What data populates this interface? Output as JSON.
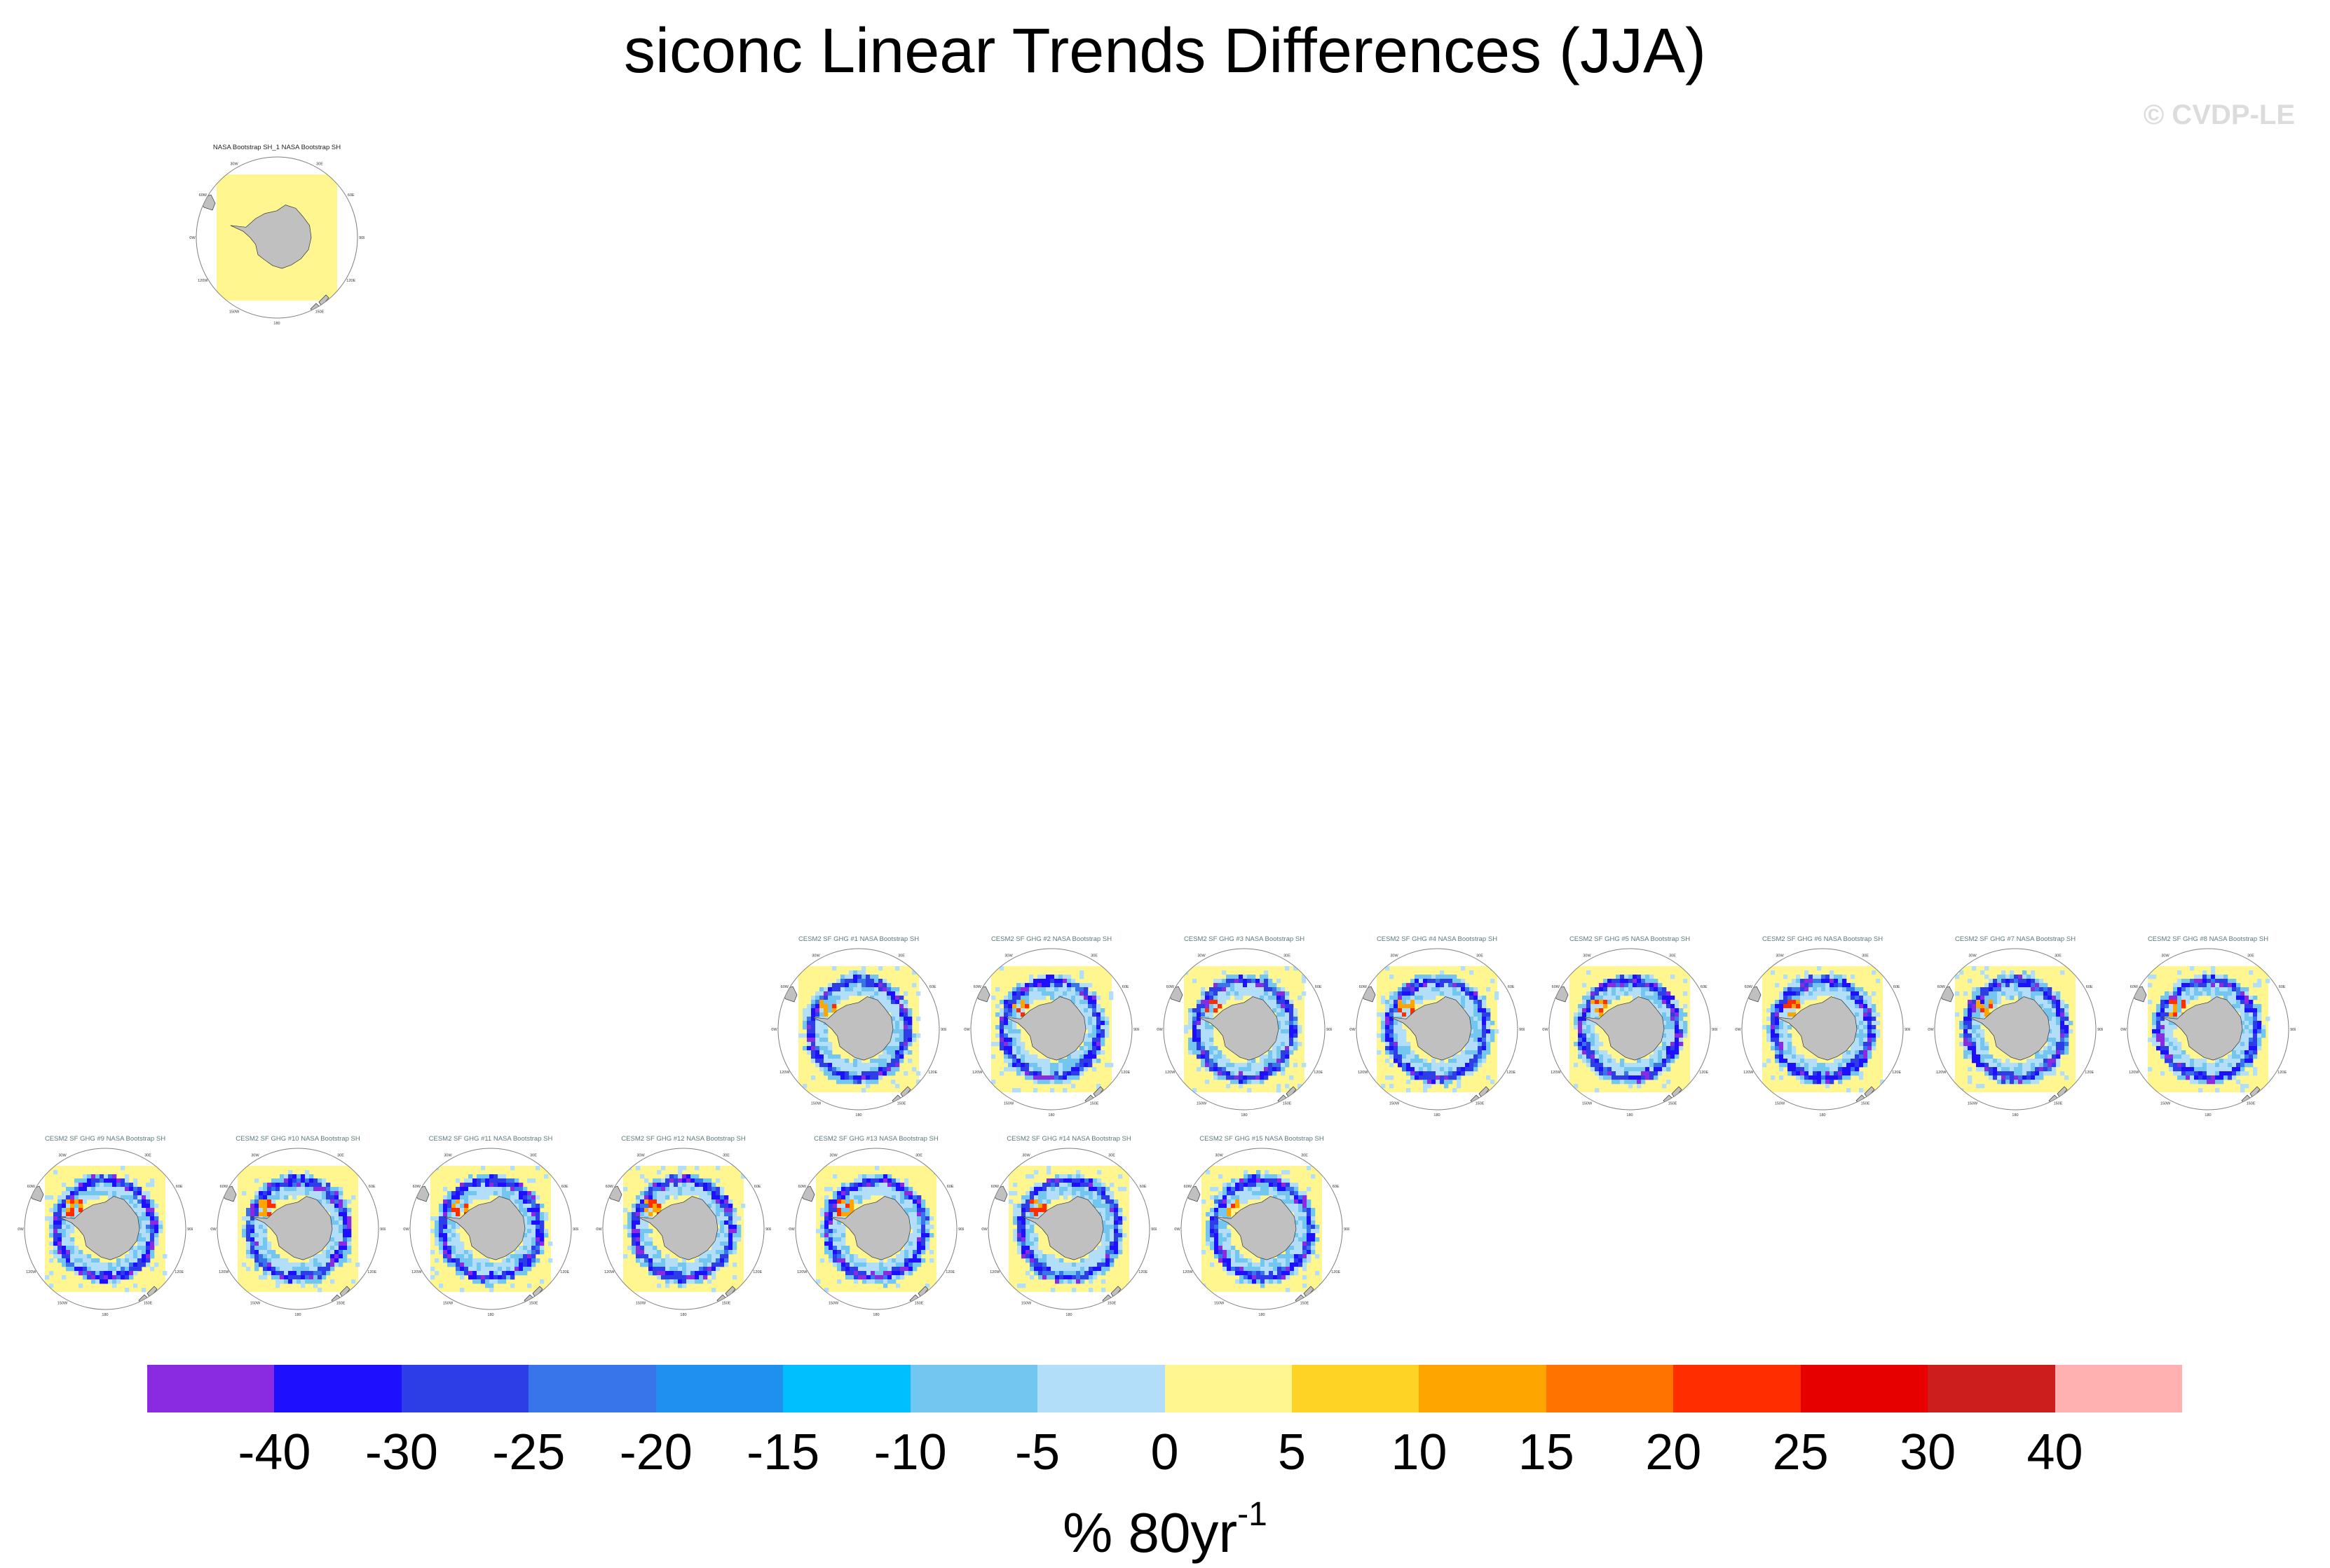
{
  "title": "siconc Linear Trends Differences (JJA)",
  "copyright": "© CVDP-LE",
  "colors": {
    "land": "#c0c0c0",
    "ocean": "#ffffff",
    "frame": "#808080",
    "obs_fill": "#fff68f",
    "colorbar": [
      "#8a2be2",
      "#1e10ff",
      "#2e3ee6",
      "#3875ea",
      "#1f8ff0",
      "#00bfff",
      "#73c6f0",
      "#b3defa",
      "#fff68f",
      "#ffd326",
      "#ffa500",
      "#ff7400",
      "#ff2d00",
      "#e60000",
      "#cd1e1e",
      "#ffb0b0"
    ]
  },
  "colorbar": {
    "ticks": [
      "-40",
      "-30",
      "-25",
      "-20",
      "-15",
      "-10",
      "-5",
      "0",
      "5",
      "10",
      "15",
      "20",
      "25",
      "30",
      "40"
    ],
    "units_main": "% 80yr",
    "units_sup": "-1"
  },
  "map_labels": {
    "lat_lon": [
      "0",
      "30E",
      "60E",
      "90E",
      "120E",
      "150E",
      "180",
      "150W",
      "120W",
      "90W",
      "60W",
      "30W"
    ]
  },
  "panels": [
    {
      "label": "NASA Bootstrap SH_1 NASA Bootstrap SH",
      "kind": "obs"
    },
    {
      "label": "CESM2 SF GHG #1 NASA Bootstrap SH",
      "kind": "model"
    },
    {
      "label": "CESM2 SF GHG #2 NASA Bootstrap SH",
      "kind": "model"
    },
    {
      "label": "CESM2 SF GHG #3 NASA Bootstrap SH",
      "kind": "model"
    },
    {
      "label": "CESM2 SF GHG #4 NASA Bootstrap SH",
      "kind": "model"
    },
    {
      "label": "CESM2 SF GHG #5 NASA Bootstrap SH",
      "kind": "model"
    },
    {
      "label": "CESM2 SF GHG #6 NASA Bootstrap SH",
      "kind": "model"
    },
    {
      "label": "CESM2 SF GHG #7 NASA Bootstrap SH",
      "kind": "model"
    },
    {
      "label": "CESM2 SF GHG #8 NASA Bootstrap SH",
      "kind": "model"
    },
    {
      "label": "CESM2 SF GHG #9 NASA Bootstrap SH",
      "kind": "model"
    },
    {
      "label": "CESM2 SF GHG #10 NASA Bootstrap SH",
      "kind": "model"
    },
    {
      "label": "CESM2 SF GHG #11 NASA Bootstrap SH",
      "kind": "model"
    },
    {
      "label": "CESM2 SF GHG #12 NASA Bootstrap SH",
      "kind": "model"
    },
    {
      "label": "CESM2 SF GHG #13 NASA Bootstrap SH",
      "kind": "model"
    },
    {
      "label": "CESM2 SF GHG #14 NASA Bootstrap SH",
      "kind": "model"
    },
    {
      "label": "CESM2 SF GHG #15 NASA Bootstrap SH",
      "kind": "model"
    }
  ]
}
